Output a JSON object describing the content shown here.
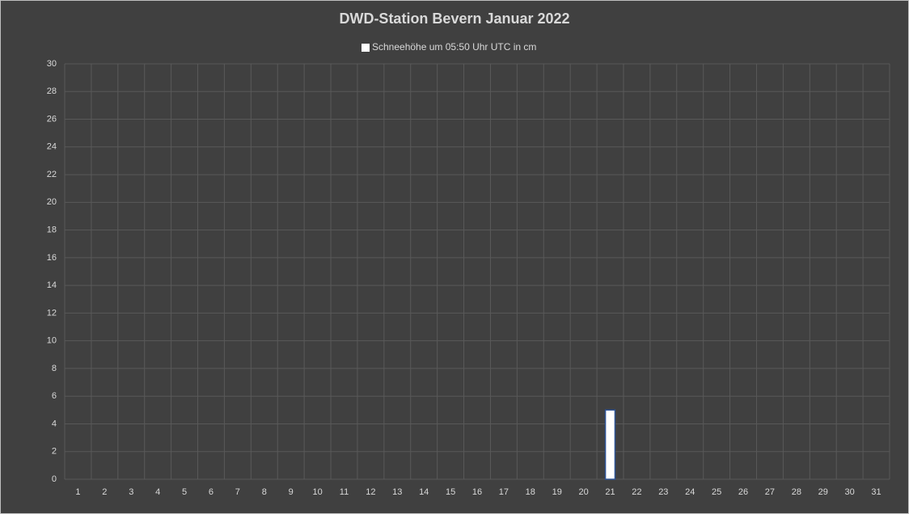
{
  "chart_data": {
    "type": "bar",
    "title": "DWD-Station  Bevern Januar 2022",
    "categories": [
      "1",
      "2",
      "3",
      "4",
      "5",
      "6",
      "7",
      "8",
      "9",
      "10",
      "11",
      "12",
      "13",
      "14",
      "15",
      "16",
      "17",
      "18",
      "19",
      "20",
      "21",
      "22",
      "23",
      "24",
      "25",
      "26",
      "27",
      "28",
      "29",
      "30",
      "31"
    ],
    "series": [
      {
        "name": "Schneehöhe um 05:50 Uhr UTC in cm",
        "color": "#ffffff",
        "edgecolor": "#2f5597",
        "values": [
          0,
          0,
          0,
          0,
          0,
          0,
          0,
          0,
          0,
          0,
          0,
          0,
          0,
          0,
          0,
          0,
          0,
          0,
          0,
          0,
          5,
          0,
          0,
          0,
          0,
          0,
          0,
          0,
          0,
          0,
          0
        ]
      }
    ],
    "ylim": [
      0,
      30
    ],
    "yticks": [
      0,
      2,
      4,
      6,
      8,
      10,
      12,
      14,
      16,
      18,
      20,
      22,
      24,
      26,
      28,
      30
    ],
    "grid": true
  }
}
